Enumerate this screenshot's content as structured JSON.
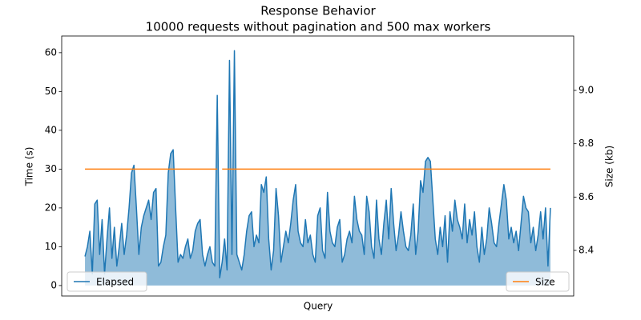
{
  "chart_data": {
    "type": "line",
    "title": "Response Behavior",
    "subtitle": "10000 requests without pagination and 500 max workers",
    "x_label": "Query",
    "y_label": "Time (s)",
    "y2_label": "Size (kb)",
    "xlim": [
      -494,
      10374
    ],
    "ylim": [
      -2.7,
      64.3
    ],
    "yticks": [
      0,
      10,
      20,
      30,
      40,
      50,
      60
    ],
    "y2lim": [
      8.229,
      9.204
    ],
    "y2ticks": [
      8.4,
      8.6,
      8.8,
      {
        "value": 9,
        "label": "9.0"
      }
    ],
    "x": [
      0,
      52,
      104,
      156,
      208,
      260,
      312,
      364,
      416,
      468,
      520,
      572,
      624,
      676,
      728,
      780,
      832,
      884,
      936,
      988,
      1040,
      1092,
      1144,
      1196,
      1248,
      1300,
      1352,
      1404,
      1456,
      1508,
      1560,
      1612,
      1664,
      1716,
      1768,
      1820,
      1872,
      1924,
      1976,
      2028,
      2080,
      2132,
      2184,
      2236,
      2288,
      2340,
      2392,
      2444,
      2496,
      2548,
      2600,
      2652,
      2704,
      2756,
      2808,
      2860,
      2912,
      2964,
      3016,
      3068,
      3120,
      3172,
      3224,
      3276,
      3328,
      3380,
      3432,
      3484,
      3536,
      3588,
      3640,
      3692,
      3744,
      3796,
      3848,
      3900,
      3952,
      4004,
      4056,
      4108,
      4160,
      4212,
      4264,
      4316,
      4368,
      4420,
      4472,
      4524,
      4576,
      4628,
      4680,
      4732,
      4784,
      4836,
      4888,
      4940,
      4992,
      5044,
      5096,
      5148,
      5200,
      5252,
      5304,
      5356,
      5408,
      5460,
      5512,
      5564,
      5616,
      5668,
      5720,
      5772,
      5824,
      5876,
      5928,
      5980,
      6032,
      6084,
      6136,
      6188,
      6240,
      6292,
      6344,
      6396,
      6448,
      6500,
      6552,
      6604,
      6656,
      6708,
      6760,
      6812,
      6864,
      6916,
      6968,
      7020,
      7072,
      7124,
      7176,
      7228,
      7280,
      7332,
      7384,
      7436,
      7488,
      7540,
      7592,
      7644,
      7696,
      7748,
      7800,
      7852,
      7904,
      7956,
      8008,
      8060,
      8112,
      8164,
      8216,
      8268,
      8320,
      8372,
      8424,
      8476,
      8528,
      8580,
      8632,
      8684,
      8736,
      8788,
      8840,
      8892,
      8944,
      8996,
      9048,
      9100,
      9152,
      9204,
      9256,
      9308,
      9360,
      9412,
      9464,
      9516,
      9568,
      9620,
      9672,
      9724,
      9776,
      9828,
      9880
    ],
    "series": [
      {
        "name": "Elapsed",
        "color": "#1f77b4",
        "fill": true,
        "legend": "lower left",
        "values": [
          7.5,
          10,
          14,
          3,
          21,
          22,
          8,
          17,
          3,
          12,
          20,
          7,
          15,
          5,
          10,
          16,
          8,
          13,
          20,
          29,
          31,
          20,
          8,
          15,
          18,
          20,
          22,
          17,
          24,
          25,
          5,
          6,
          10,
          13,
          29,
          34,
          35,
          20,
          6,
          8,
          7,
          10,
          12,
          7,
          9,
          14,
          16,
          17,
          8,
          5,
          8,
          10,
          6,
          5,
          49,
          2,
          6,
          12,
          4,
          58,
          8,
          60.5,
          8,
          6,
          4,
          8,
          14,
          18,
          19,
          10,
          13,
          11,
          26,
          24,
          28,
          12,
          4,
          9,
          25,
          18,
          6,
          10,
          14,
          11,
          16,
          22,
          26,
          14,
          11,
          10,
          17,
          11,
          13,
          8,
          6,
          18,
          20,
          9,
          7,
          24,
          14,
          11,
          10,
          15,
          17,
          6,
          8,
          12,
          14,
          11,
          23,
          17,
          14,
          13,
          8,
          23,
          19,
          10,
          7,
          22,
          12,
          8,
          16,
          22,
          12,
          25,
          16,
          9,
          13,
          19,
          14,
          10,
          9,
          13,
          21,
          8,
          14,
          27,
          24,
          32,
          33,
          32,
          22,
          12,
          8,
          15,
          10,
          18,
          6,
          19,
          14,
          22,
          17,
          15,
          12,
          21,
          11,
          17,
          13,
          19,
          10,
          6,
          15,
          8,
          12,
          20,
          16,
          11,
          10,
          16,
          21,
          26,
          22,
          12,
          15,
          11,
          14,
          9,
          16,
          23,
          20,
          19,
          11,
          15,
          9,
          13,
          19,
          12,
          20,
          5,
          20
        ]
      },
      {
        "name": "Size",
        "color": "#ff7f0e",
        "axis": "y2",
        "fill": false,
        "legend": "lower right",
        "values": [
          8.705,
          8.705,
          8.705,
          8.705,
          8.705,
          8.705,
          8.705,
          8.705,
          8.705,
          8.705,
          8.705,
          8.705,
          8.705,
          8.705,
          8.705,
          8.705,
          8.705,
          8.705,
          8.705,
          8.705,
          8.705,
          8.705,
          8.705,
          8.705,
          8.705,
          8.705,
          8.705,
          8.705,
          8.705,
          8.705,
          8.705,
          8.705,
          8.705,
          8.705,
          8.705,
          8.705,
          8.705,
          8.705,
          8.705,
          8.705,
          8.705,
          8.705,
          8.705,
          8.705,
          8.705,
          8.705,
          8.705,
          8.705,
          8.705,
          8.705,
          8.705,
          8.705,
          8.705,
          8.705,
          8.705,
          null,
          8.705,
          8.705,
          8.705,
          8.705,
          8.705,
          8.705,
          8.705,
          8.705,
          8.705,
          8.705,
          8.705,
          8.705,
          8.705,
          8.705,
          8.705,
          8.705,
          8.705,
          8.705,
          8.705,
          8.705,
          8.705,
          8.705,
          8.705,
          8.705,
          8.705,
          8.705,
          8.705,
          8.705,
          8.705,
          8.705,
          8.705,
          8.705,
          8.705,
          8.705,
          8.705,
          8.705,
          8.705,
          8.705,
          8.705,
          8.705,
          8.705,
          8.705,
          8.705,
          8.705,
          8.705,
          8.705,
          8.705,
          8.705,
          8.705,
          8.705,
          8.705,
          8.705,
          8.705,
          8.705,
          8.705,
          8.705,
          8.705,
          8.705,
          8.705,
          8.705,
          8.705,
          8.705,
          8.705,
          8.705,
          8.705,
          8.705,
          8.705,
          8.705,
          8.705,
          8.705,
          8.705,
          8.705,
          8.705,
          8.705,
          8.705,
          8.705,
          8.705,
          8.705,
          8.705,
          8.705,
          8.705,
          8.705,
          8.705,
          8.705,
          8.705,
          8.705,
          8.705,
          8.705,
          8.705,
          8.705,
          8.705,
          8.705,
          8.705,
          8.705,
          8.705,
          8.705,
          8.705,
          8.705,
          8.705,
          8.705,
          8.705,
          8.705,
          8.705,
          8.705,
          8.705,
          8.705,
          8.705,
          8.705,
          8.705,
          8.705,
          8.705,
          8.705,
          8.705,
          8.705,
          8.705,
          8.705,
          8.705,
          8.705,
          8.705,
          8.705,
          8.705,
          8.705,
          8.705,
          8.705,
          8.705,
          8.705,
          8.705,
          8.705,
          8.705,
          8.705,
          8.705,
          8.705,
          8.705,
          8.705,
          8.705
        ]
      }
    ]
  }
}
